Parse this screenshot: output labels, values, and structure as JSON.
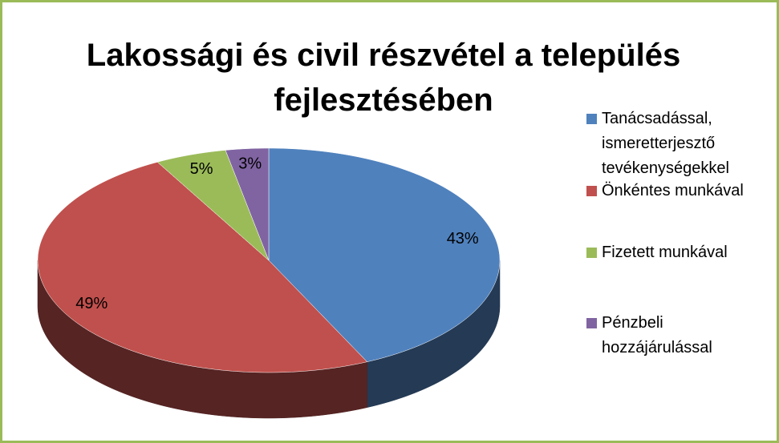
{
  "chart_data": {
    "type": "pie",
    "title": "Lakossági és civil részvétel a település fejlesztésében",
    "categories": [
      "Tanácsadással, ismeretterjesztő tevékenységekkel",
      "Önkéntes munkával",
      "Fizetett munkával",
      "Pénzbeli hozzájárulással"
    ],
    "values": [
      43,
      49,
      5,
      3
    ],
    "value_labels": [
      "43%",
      "49%",
      "5%",
      "3%"
    ],
    "colors": [
      "#4f81bd",
      "#c0504d",
      "#9bbb59",
      "#8064a2"
    ],
    "legend": "right"
  }
}
